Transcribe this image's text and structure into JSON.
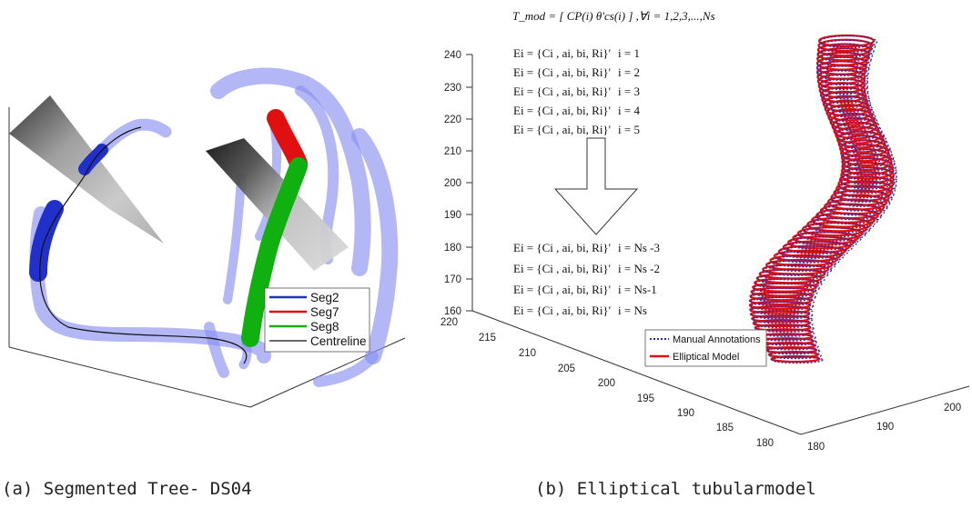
{
  "panel_a": {
    "caption": "(a) Segmented Tree- DS04",
    "legend": [
      {
        "label": "Seg2",
        "color": "#1f2fc0"
      },
      {
        "label": "Seg7",
        "color": "#e01010"
      },
      {
        "label": "Seg8",
        "color": "#10b010"
      },
      {
        "label": "Centreline",
        "color": "#111111"
      }
    ]
  },
  "panel_b": {
    "caption": "(b) Elliptical tubularmodel",
    "t_mod": "T_mod = [ CP(i)   θ'cs(i) ] ,∀i = 1,2,3,...,Ns",
    "equations_top": [
      {
        "expr": "Ei = {Ci ,  ai,   bi,   Ri}'",
        "index": "i = 1"
      },
      {
        "expr": "Ei = {Ci ,  ai,   bi,   Ri}'",
        "index": "i = 2"
      },
      {
        "expr": "Ei = {Ci ,  ai,   bi,   Ri}'",
        "index": "i = 3"
      },
      {
        "expr": "Ei = {Ci ,  ai,   bi,   Ri}'",
        "index": "i = 4"
      },
      {
        "expr": "Ei = {Ci ,  ai,   bi,   Ri}'",
        "index": "i = 5"
      }
    ],
    "equations_bottom": [
      {
        "expr": "Ei = {Ci ,  ai,   bi,   Ri}'",
        "index": "i = Ns -3"
      },
      {
        "expr": "Ei = {Ci ,  ai,   bi,   Ri}'",
        "index": "i = Ns -2"
      },
      {
        "expr": "Ei = {Ci ,  ai,   bi,   Ri}'",
        "index": "i = Ns-1"
      },
      {
        "expr": "Ei = {Ci ,  ai,   bi,   Ri}'",
        "index": "i = Ns"
      }
    ],
    "z_ticks": [
      "240",
      "230",
      "220",
      "210",
      "200",
      "190",
      "180",
      "170",
      "160"
    ],
    "x_ticks": [
      "220",
      "215",
      "210",
      "205",
      "200",
      "195",
      "190",
      "185",
      "180"
    ],
    "y_ticks": [
      "180",
      "190",
      "200"
    ],
    "legend": [
      {
        "label": "Manual Annotations",
        "color": "#2a2ab0"
      },
      {
        "label": "Elliptical Model",
        "color": "#e01010"
      }
    ]
  }
}
